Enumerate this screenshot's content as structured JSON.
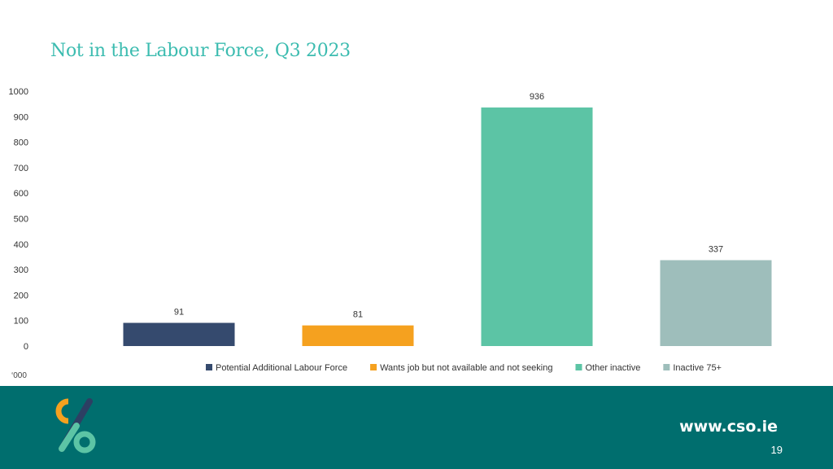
{
  "slide": {
    "title": "Not in the Labour Force, Q3 2023",
    "unit_label": "‘000",
    "page_number": "19"
  },
  "footer": {
    "url": "www.cso.ie",
    "logo_icon": "cso-logo-icon",
    "background_color": "#006e6e"
  },
  "chart_data": {
    "type": "bar",
    "title": "",
    "xlabel": "",
    "ylabel": "",
    "ylim": [
      0,
      1000
    ],
    "yticks": [
      0,
      100,
      200,
      300,
      400,
      500,
      600,
      700,
      800,
      900,
      1000
    ],
    "grid": false,
    "legend_position": "bottom",
    "categories": [
      "Potential Additional Labour Force",
      "Wants job but not available and not seeking",
      "Other inactive",
      "Inactive 75+"
    ],
    "values": [
      91,
      81,
      936,
      337
    ],
    "colors": [
      "#354a6e",
      "#f5a11f",
      "#5cc4a5",
      "#9ebebb"
    ]
  }
}
